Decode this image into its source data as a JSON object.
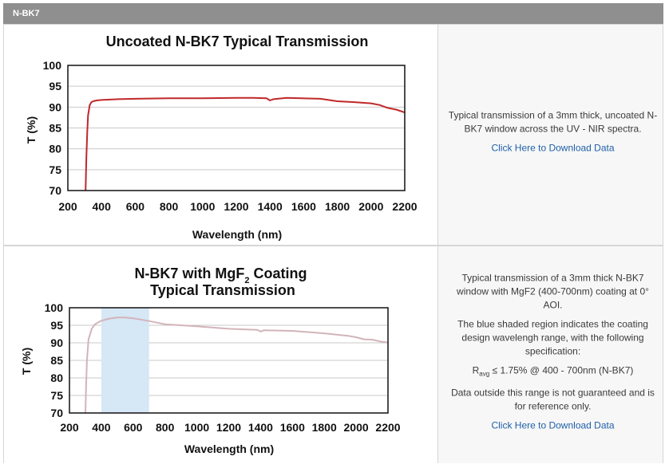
{
  "header": {
    "title": "N-BK7"
  },
  "rows": [
    {
      "description": [
        "Typical transmission of a 3mm thick, uncoated N-BK7 window across the UV - NIR spectra."
      ],
      "link_label": "Click Here to Download Data"
    },
    {
      "description": [
        "Typical transmission of a 3mm thick N-BK7 window with MgF2 (400-700nm) coating at 0° AOI.",
        "The blue shaded region indicates the coating design wavelengh range, with the following specification:"
      ],
      "spec": {
        "r": "R",
        "sub": "avg",
        "rest": " ≤ 1.75% @ 400 - 700nm (N-BK7)"
      },
      "note": "Data outside this range is not guaranteed and is for reference only.",
      "link_label": "Click Here to Download Data"
    }
  ],
  "chart_data": [
    {
      "type": "line",
      "title": "Uncoated N-BK7 Typical Transmission",
      "xlabel": "Wavelength (nm)",
      "ylabel": "T (%)",
      "xlim": [
        200,
        2200
      ],
      "ylim": [
        70,
        100
      ],
      "xticks": [
        200,
        400,
        600,
        800,
        1000,
        1200,
        1400,
        1600,
        1800,
        2000,
        2200
      ],
      "yticks": [
        70,
        75,
        80,
        85,
        90,
        95,
        100
      ],
      "grid": true,
      "series": [
        {
          "color": "#c0282a",
          "x": [
            305,
            310,
            315,
            320,
            330,
            340,
            350,
            370,
            400,
            500,
            600,
            800,
            1000,
            1200,
            1300,
            1380,
            1400,
            1420,
            1500,
            1700,
            1800,
            1900,
            2000,
            2050,
            2100,
            2150,
            2200
          ],
          "y": [
            70,
            78,
            84,
            88,
            90.5,
            91.2,
            91.4,
            91.6,
            91.7,
            91.9,
            92,
            92.1,
            92.1,
            92.2,
            92.2,
            92.1,
            91.6,
            91.9,
            92.2,
            92,
            91.4,
            91.2,
            90.9,
            90.5,
            89.8,
            89.4,
            88.7
          ]
        }
      ]
    },
    {
      "type": "line",
      "title_lines": [
        {
          "before": "N-BK7 with MgF",
          "sub": "2",
          "after": " Coating"
        },
        {
          "before": "Typical Transmission",
          "sub": "",
          "after": ""
        }
      ],
      "xlabel": "Wavelength (nm)",
      "ylabel": "T (%)",
      "xlim": [
        200,
        2200
      ],
      "ylim": [
        70,
        100
      ],
      "xticks": [
        200,
        400,
        600,
        800,
        1000,
        1200,
        1400,
        1600,
        1800,
        2000,
        2200
      ],
      "yticks": [
        70,
        75,
        80,
        85,
        90,
        95,
        100
      ],
      "grid": true,
      "shaded_region": {
        "x0": 400,
        "x1": 700,
        "color": "#d6e7f6"
      },
      "series": [
        {
          "color": "#d2b4ba",
          "x": [
            300,
            305,
            310,
            320,
            340,
            360,
            400,
            450,
            500,
            550,
            600,
            700,
            800,
            1000,
            1200,
            1380,
            1400,
            1420,
            1600,
            1800,
            1950,
            2000,
            2050,
            2100,
            2150,
            2200
          ],
          "y": [
            70,
            78,
            85,
            91,
            94,
            95.3,
            96.3,
            96.9,
            97.2,
            97.2,
            97,
            96.2,
            95.3,
            94.7,
            94,
            93.7,
            93.2,
            93.6,
            93.4,
            92.7,
            92,
            91.6,
            91,
            90.9,
            90.4,
            90.1
          ]
        }
      ]
    }
  ]
}
